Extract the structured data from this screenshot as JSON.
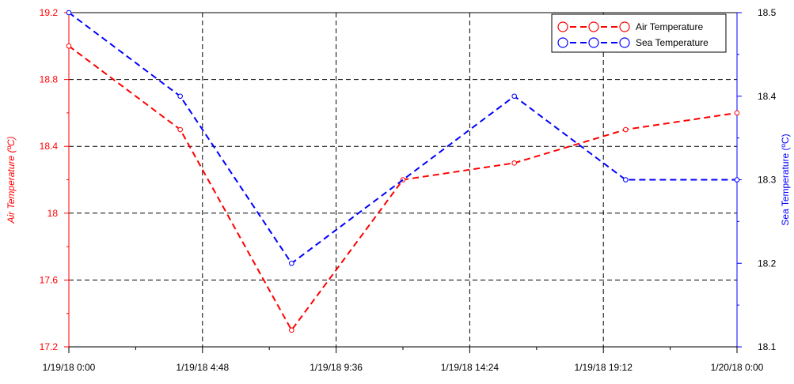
{
  "chart_data": {
    "type": "line",
    "x_tick_labels": [
      "1/19/18 0:00",
      "1/19/18 4:48",
      "1/19/18 9:36",
      "1/19/18 14:24",
      "1/19/18 19:12",
      "1/20/18 0:00"
    ],
    "xlim": [
      "1/19/18 0:00",
      "1/20/18 0:00"
    ],
    "y_left": {
      "label": "Air Temperature (ºC)",
      "range": [
        17.2,
        19.2
      ],
      "ticks": [
        "17.2",
        "17.6",
        "18",
        "18.4",
        "18.8",
        "19.2"
      ]
    },
    "y_right": {
      "label": "Sea Temperature (ºC)",
      "range": [
        18.1,
        18.5
      ],
      "ticks": [
        "18.1",
        "18.2",
        "18.3",
        "18.4",
        "18.5"
      ]
    },
    "series": [
      {
        "name": "Air Temperature",
        "axis": "left",
        "color": "#ff0000",
        "line_style": "dashed",
        "marker": "circle",
        "points": [
          {
            "x": "1/19/18 0:00",
            "y": 19.0
          },
          {
            "x": "1/19/18 4:00",
            "y": 18.5
          },
          {
            "x": "1/19/18 8:00",
            "y": 17.3
          },
          {
            "x": "1/19/18 12:00",
            "y": 18.2
          },
          {
            "x": "1/19/18 16:00",
            "y": 18.3
          },
          {
            "x": "1/19/18 20:00",
            "y": 18.5
          },
          {
            "x": "1/20/18 0:00",
            "y": 18.6
          }
        ]
      },
      {
        "name": "Sea Temperature",
        "axis": "right",
        "color": "#0000ff",
        "line_style": "dashed",
        "marker": "circle",
        "points": [
          {
            "x": "1/19/18 0:00",
            "y": 18.5
          },
          {
            "x": "1/19/18 4:00",
            "y": 18.4
          },
          {
            "x": "1/19/18 8:00",
            "y": 18.2
          },
          {
            "x": "1/19/18 16:00",
            "y": 18.4
          },
          {
            "x": "1/19/18 20:00",
            "y": 18.3
          },
          {
            "x": "1/20/18 0:00",
            "y": 18.3
          }
        ]
      }
    ],
    "grid": true,
    "legend_position": "top-right"
  }
}
